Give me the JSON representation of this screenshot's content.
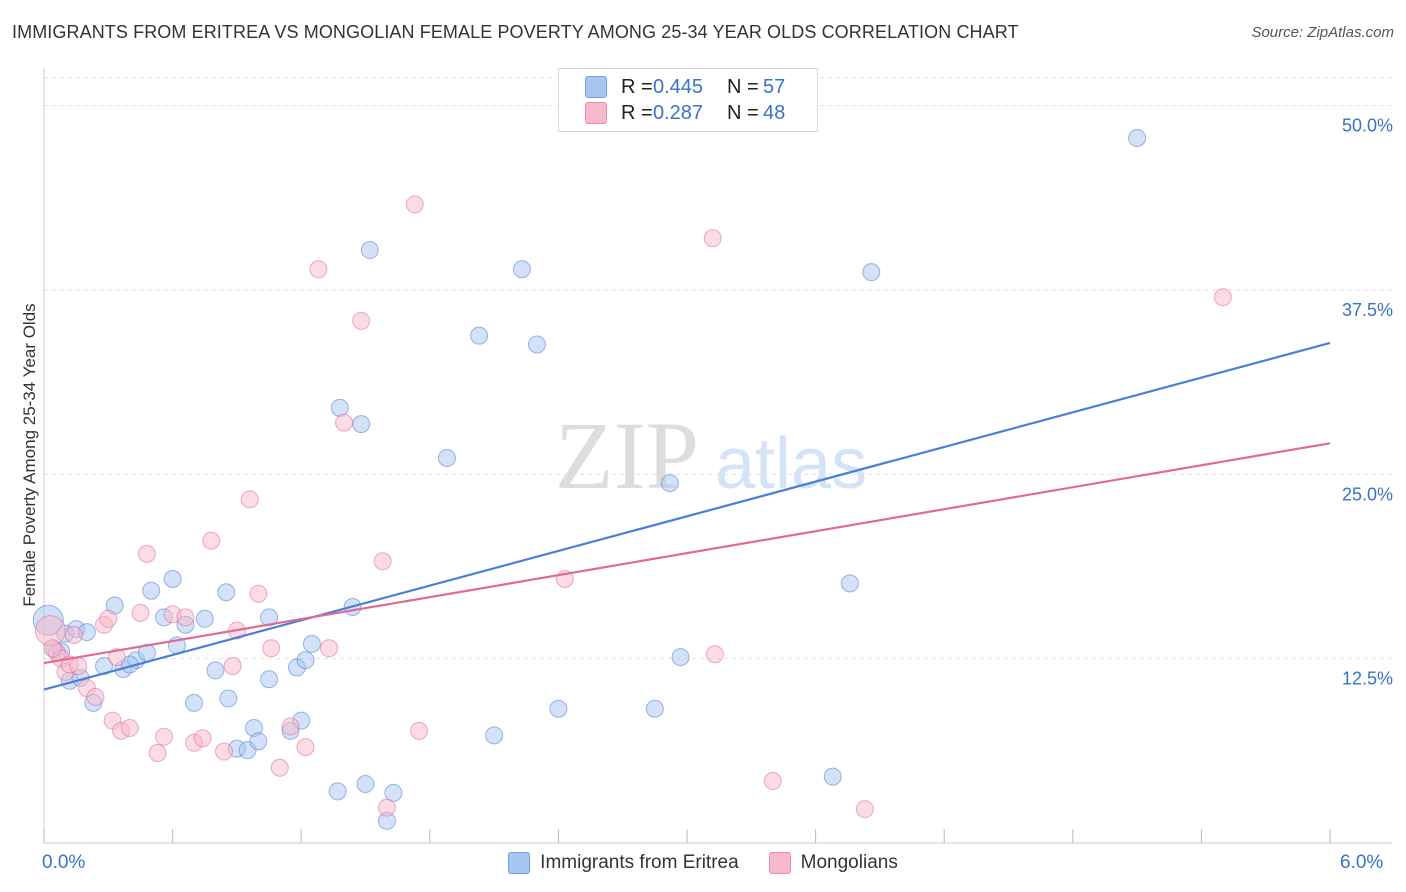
{
  "header": {
    "title": "IMMIGRANTS FROM ERITREA VS MONGOLIAN FEMALE POVERTY AMONG 25-34 YEAR OLDS CORRELATION CHART",
    "source": "Source: ZipAtlas.com"
  },
  "watermark": {
    "zip": "ZIP",
    "atlas": "atlas"
  },
  "legend": {
    "rows": [
      {
        "r_label": "R =",
        "r_value": "0.445",
        "n_label": "N =",
        "n_value": "57",
        "color": "#a7c6f2"
      },
      {
        "r_label": "R =",
        "r_value": "0.287",
        "n_label": "N =",
        "n_value": "48",
        "color": "#f7b8cb"
      }
    ]
  },
  "chart_data": {
    "type": "scatter",
    "title": "IMMIGRANTS FROM ERITREA VS MONGOLIAN FEMALE POVERTY AMONG 25-34 YEAR OLDS CORRELATION CHART",
    "xlabel": "",
    "ylabel": "Female Poverty Among 25-34 Year Olds",
    "xlim": [
      0,
      6
    ],
    "ylim": [
      0,
      52
    ],
    "x_tick_labels": [
      "0.0%",
      "6.0%"
    ],
    "y_ticks": [
      12.5,
      25.0,
      37.5,
      50.0
    ],
    "y_tick_labels": [
      "12.5%",
      "25.0%",
      "37.5%",
      "50.0%"
    ],
    "grid": true,
    "legend_position": "top-center",
    "series": [
      {
        "name": "Immigrants from Eritrea",
        "color": "#4a7fd4",
        "fill": "#a7c6f2",
        "points": [
          [
            0.02,
            15.1
          ],
          [
            0.05,
            13.1
          ],
          [
            0.08,
            13.0
          ],
          [
            0.1,
            14.2
          ],
          [
            0.15,
            14.5
          ],
          [
            0.2,
            14.3
          ],
          [
            0.12,
            11.0
          ],
          [
            0.17,
            11.2
          ],
          [
            0.23,
            9.5
          ],
          [
            0.28,
            12.0
          ],
          [
            0.33,
            16.1
          ],
          [
            0.37,
            11.8
          ],
          [
            0.43,
            12.4
          ],
          [
            0.4,
            12.1
          ],
          [
            0.48,
            12.9
          ],
          [
            0.5,
            17.1
          ],
          [
            0.56,
            15.3
          ],
          [
            0.6,
            17.9
          ],
          [
            0.62,
            13.4
          ],
          [
            0.66,
            14.8
          ],
          [
            0.7,
            9.5
          ],
          [
            0.75,
            15.2
          ],
          [
            0.8,
            11.7
          ],
          [
            0.85,
            17.0
          ],
          [
            0.86,
            9.8
          ],
          [
            0.9,
            6.4
          ],
          [
            0.95,
            6.3
          ],
          [
            0.98,
            7.8
          ],
          [
            1.0,
            6.9
          ],
          [
            1.05,
            15.3
          ],
          [
            1.05,
            11.1
          ],
          [
            1.15,
            7.6
          ],
          [
            1.2,
            8.3
          ],
          [
            1.18,
            11.9
          ],
          [
            1.22,
            12.4
          ],
          [
            1.25,
            13.5
          ],
          [
            1.38,
            29.5
          ],
          [
            1.44,
            16.0
          ],
          [
            1.52,
            40.2
          ],
          [
            1.48,
            28.4
          ],
          [
            1.37,
            3.5
          ],
          [
            1.5,
            4.0
          ],
          [
            1.6,
            1.5
          ],
          [
            1.63,
            3.4
          ],
          [
            1.88,
            26.1
          ],
          [
            2.03,
            34.4
          ],
          [
            2.1,
            7.3
          ],
          [
            2.23,
            38.9
          ],
          [
            2.3,
            33.8
          ],
          [
            2.4,
            9.1
          ],
          [
            2.85,
            9.1
          ],
          [
            2.92,
            24.4
          ],
          [
            2.97,
            12.6
          ],
          [
            3.68,
            4.5
          ],
          [
            3.76,
            17.6
          ],
          [
            3.86,
            38.7
          ],
          [
            5.1,
            47.8
          ]
        ]
      },
      {
        "name": "Mongolians",
        "color": "#e06a96",
        "fill": "#f7b8cb",
        "points": [
          [
            0.03,
            14.4
          ],
          [
            0.06,
            12.9
          ],
          [
            0.08,
            12.5
          ],
          [
            0.1,
            11.6
          ],
          [
            0.12,
            12.1
          ],
          [
            0.14,
            14.1
          ],
          [
            0.16,
            12.0
          ],
          [
            0.2,
            10.5
          ],
          [
            0.24,
            9.9
          ],
          [
            0.28,
            14.8
          ],
          [
            0.3,
            15.2
          ],
          [
            0.32,
            8.3
          ],
          [
            0.36,
            7.6
          ],
          [
            0.4,
            7.8
          ],
          [
            0.45,
            15.6
          ],
          [
            0.48,
            19.6
          ],
          [
            0.53,
            6.1
          ],
          [
            0.56,
            7.2
          ],
          [
            0.6,
            15.5
          ],
          [
            0.66,
            15.3
          ],
          [
            0.7,
            6.8
          ],
          [
            0.74,
            7.1
          ],
          [
            0.78,
            20.5
          ],
          [
            0.84,
            6.2
          ],
          [
            0.88,
            12.0
          ],
          [
            0.9,
            14.4
          ],
          [
            0.96,
            23.3
          ],
          [
            1.0,
            16.9
          ],
          [
            1.06,
            13.2
          ],
          [
            1.1,
            5.1
          ],
          [
            1.15,
            7.9
          ],
          [
            1.22,
            6.5
          ],
          [
            1.28,
            38.9
          ],
          [
            1.33,
            13.2
          ],
          [
            1.4,
            28.5
          ],
          [
            1.48,
            35.4
          ],
          [
            1.58,
            19.1
          ],
          [
            1.6,
            2.4
          ],
          [
            1.73,
            43.3
          ],
          [
            1.75,
            7.6
          ],
          [
            2.43,
            17.9
          ],
          [
            3.12,
            41.0
          ],
          [
            3.13,
            12.8
          ],
          [
            3.4,
            4.2
          ],
          [
            3.83,
            2.3
          ],
          [
            5.5,
            37.0
          ],
          [
            0.04,
            13.2
          ],
          [
            0.34,
            12.6
          ]
        ]
      }
    ],
    "trendlines": [
      {
        "series": "Immigrants from Eritrea",
        "x": [
          0,
          6
        ],
        "y": [
          10.4,
          33.9
        ]
      },
      {
        "series": "Mongolians",
        "x": [
          0,
          6
        ],
        "y": [
          12.2,
          27.1
        ]
      }
    ]
  },
  "bottom_legend": {
    "items": [
      {
        "label": "Immigrants from Eritrea",
        "color": "#a7c6f2"
      },
      {
        "label": "Mongolians",
        "color": "#f7b8cb"
      }
    ]
  }
}
